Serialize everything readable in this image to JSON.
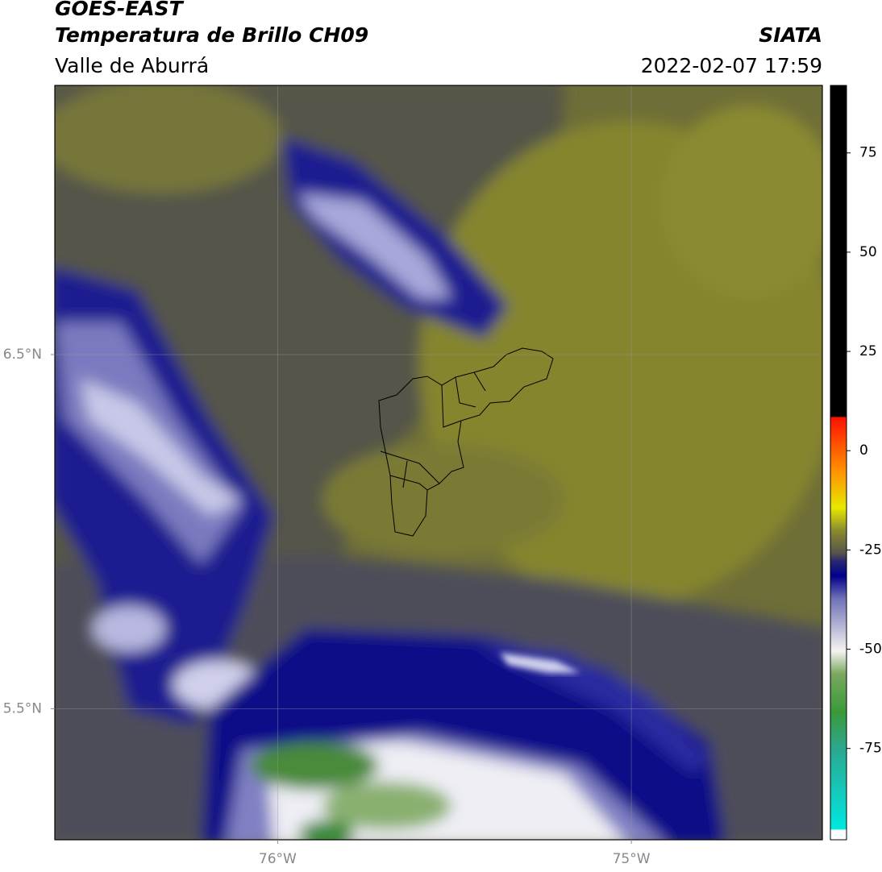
{
  "header": {
    "title": "GOES-EAST",
    "subtitle": "Temperatura de Brillo CH09",
    "region": "Valle de Aburrá",
    "source": "SIATA",
    "datetime": "2022-02-07 17:59"
  },
  "map": {
    "xlim": [
      -76.63,
      -74.46
    ],
    "ylim": [
      5.13,
      7.26
    ],
    "xticks": [
      {
        "value": -76,
        "label": "76°W"
      },
      {
        "value": -75,
        "label": "75°W"
      }
    ],
    "yticks": [
      {
        "value": 6.5,
        "label": "6.5°N"
      },
      {
        "value": 5.5,
        "label": "5.5°N"
      }
    ],
    "grid": true
  },
  "colorbar": {
    "lim": [
      -98,
      92
    ],
    "ticks": [
      75,
      50,
      25,
      0,
      -25,
      -50,
      -75
    ]
  }
}
